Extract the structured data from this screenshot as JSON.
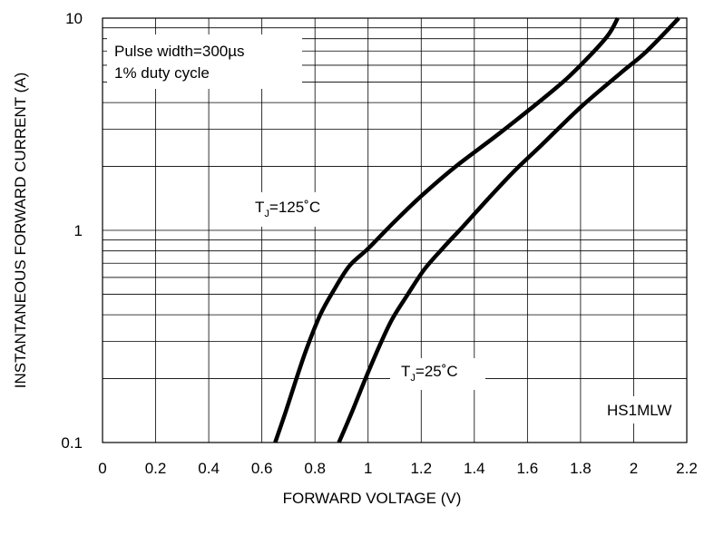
{
  "chart_data": {
    "type": "line",
    "title": "",
    "xlabel": "FORWARD VOLTAGE (V)",
    "ylabel": "INSTANTANEOUS FORWARD CURRENT (A)",
    "x_scale": "linear",
    "y_scale": "log",
    "xlim": [
      0,
      2.2
    ],
    "ylim": [
      0.1,
      10
    ],
    "x_ticks": [
      0,
      0.2,
      0.4,
      0.6,
      0.8,
      1,
      1.2,
      1.4,
      1.6,
      1.8,
      2,
      2.2
    ],
    "x_tick_labels": [
      "0",
      "0.2",
      "0.4",
      "0.6",
      "0.8",
      "1",
      "1.2",
      "1.4",
      "1.6",
      "1.8",
      "2",
      "2.2"
    ],
    "y_ticks": [
      0.1,
      1,
      10
    ],
    "y_tick_labels": [
      "0.1",
      "1",
      "10"
    ],
    "grid": true,
    "conditions": [
      "Pulse width=300µs",
      "1% duty cycle"
    ],
    "part_number": "HS1MLW",
    "series": [
      {
        "label": "T_J=125˚C",
        "label_main": "T",
        "label_sub": "J",
        "label_rest": "=125˚C",
        "x": [
          0.65,
          0.69,
          0.73,
          0.77,
          0.82,
          0.87,
          0.93,
          1.0,
          1.1,
          1.2,
          1.33,
          1.5,
          1.7,
          1.8,
          1.9,
          1.94
        ],
        "y": [
          0.1,
          0.14,
          0.2,
          0.28,
          0.4,
          0.52,
          0.68,
          0.82,
          1.1,
          1.45,
          2.0,
          2.9,
          4.6,
          6.0,
          8.2,
          10
        ]
      },
      {
        "label": "T_J=25˚C",
        "label_main": "T",
        "label_sub": "J",
        "label_rest": "=25˚C",
        "x": [
          0.89,
          0.94,
          0.99,
          1.04,
          1.09,
          1.15,
          1.21,
          1.28,
          1.36,
          1.45,
          1.55,
          1.65,
          1.8,
          1.95,
          2.05,
          2.17
        ],
        "y": [
          0.1,
          0.14,
          0.2,
          0.28,
          0.38,
          0.5,
          0.65,
          0.82,
          1.05,
          1.4,
          1.9,
          2.5,
          3.8,
          5.5,
          7.0,
          10
        ]
      }
    ]
  }
}
